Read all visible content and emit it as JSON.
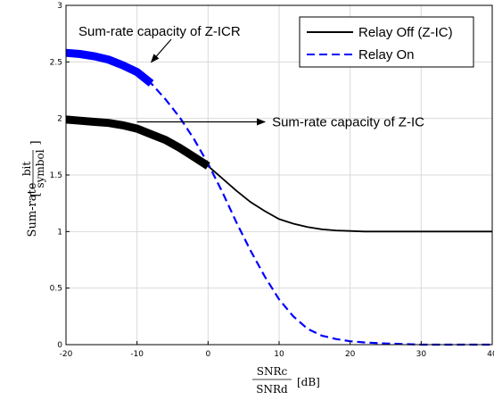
{
  "chart_data": {
    "type": "line",
    "xlabel": {
      "numerator": "SNRc",
      "denominator": "SNRd",
      "unit": "[dB]"
    },
    "ylabel": {
      "name": "Sum-rate",
      "unit_numerator": "bit",
      "unit_denominator": "symbol"
    },
    "xlim": [
      -20,
      40
    ],
    "ylim": [
      0,
      3
    ],
    "xticks": [
      -20,
      -10,
      0,
      10,
      20,
      30,
      40
    ],
    "yticks": [
      0,
      0.5,
      1,
      1.5,
      2,
      2.5,
      3
    ],
    "grid": true,
    "legend_position": "top-right",
    "series": [
      {
        "name": "Relay Off (Z-IC)",
        "style": "solid",
        "color": "#000000",
        "x": [
          -20,
          -18,
          -16,
          -14,
          -12,
          -10,
          -8,
          -6,
          -4,
          -2,
          0,
          2,
          4,
          6,
          8,
          10,
          12,
          14,
          16,
          18,
          20,
          22,
          25,
          30,
          35,
          40
        ],
        "y": [
          1.99,
          1.98,
          1.97,
          1.96,
          1.94,
          1.91,
          1.86,
          1.81,
          1.74,
          1.66,
          1.58,
          1.47,
          1.36,
          1.26,
          1.18,
          1.11,
          1.07,
          1.04,
          1.02,
          1.01,
          1.005,
          1.0,
          1.0,
          1.0,
          1.0,
          1.0
        ]
      },
      {
        "name": "Relay On",
        "style": "dashed",
        "color": "#0000ff",
        "x": [
          -20,
          -18,
          -16,
          -14,
          -12,
          -10,
          -8,
          -6,
          -4,
          -2,
          0,
          2,
          4,
          6,
          8,
          10,
          12,
          14,
          16,
          18,
          20,
          22,
          25,
          30,
          35,
          40
        ],
        "y": [
          2.58,
          2.57,
          2.55,
          2.52,
          2.47,
          2.41,
          2.31,
          2.17,
          2.01,
          1.82,
          1.6,
          1.35,
          1.08,
          0.83,
          0.6,
          0.4,
          0.25,
          0.14,
          0.08,
          0.05,
          0.03,
          0.02,
          0.01,
          0.0,
          0.0,
          0.0
        ]
      }
    ],
    "highlighted_segments": [
      {
        "series": "Relay On",
        "x_from": -20,
        "x_to": -8,
        "color": "#0000ff"
      },
      {
        "series": "Relay Off (Z-IC)",
        "x_from": -20,
        "x_to": 0,
        "color": "#000000"
      }
    ],
    "annotations": [
      {
        "text": "Sum-rate capacity of Z-ICR",
        "arrow_to_x": -8,
        "arrow_to_y": 2.45
      },
      {
        "text": "Sum-rate capacity of Z-IC",
        "arrow_from_x": -10,
        "arrow_from_y": 1.97,
        "arrow_to_x": 8,
        "arrow_to_y": 1.97
      }
    ]
  }
}
